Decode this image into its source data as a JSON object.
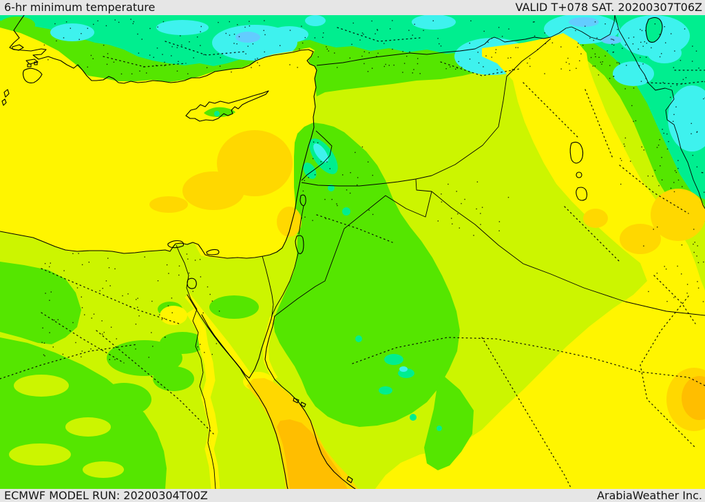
{
  "header": {
    "title": "6-hr minimum temperature",
    "valid_label": "VALID T+078 SAT. 20200307T06Z"
  },
  "footer": {
    "model_run": "ECMWF MODEL RUN: 20200304T00Z",
    "brand": "ArabiaWeather Inc."
  },
  "map": {
    "palette": {
      "cyan": "#3ef2ee",
      "light_blue": "#63ccff",
      "teal_green": "#00ee8f",
      "green": "#55e600",
      "chartreuse": "#ccf500",
      "yellow": "#fff500",
      "gold": "#ffd800",
      "amber": "#ffbe00",
      "boundary_black": "#000000",
      "bar_gray": "#e6e6e6",
      "text_dark": "#141414"
    }
  }
}
